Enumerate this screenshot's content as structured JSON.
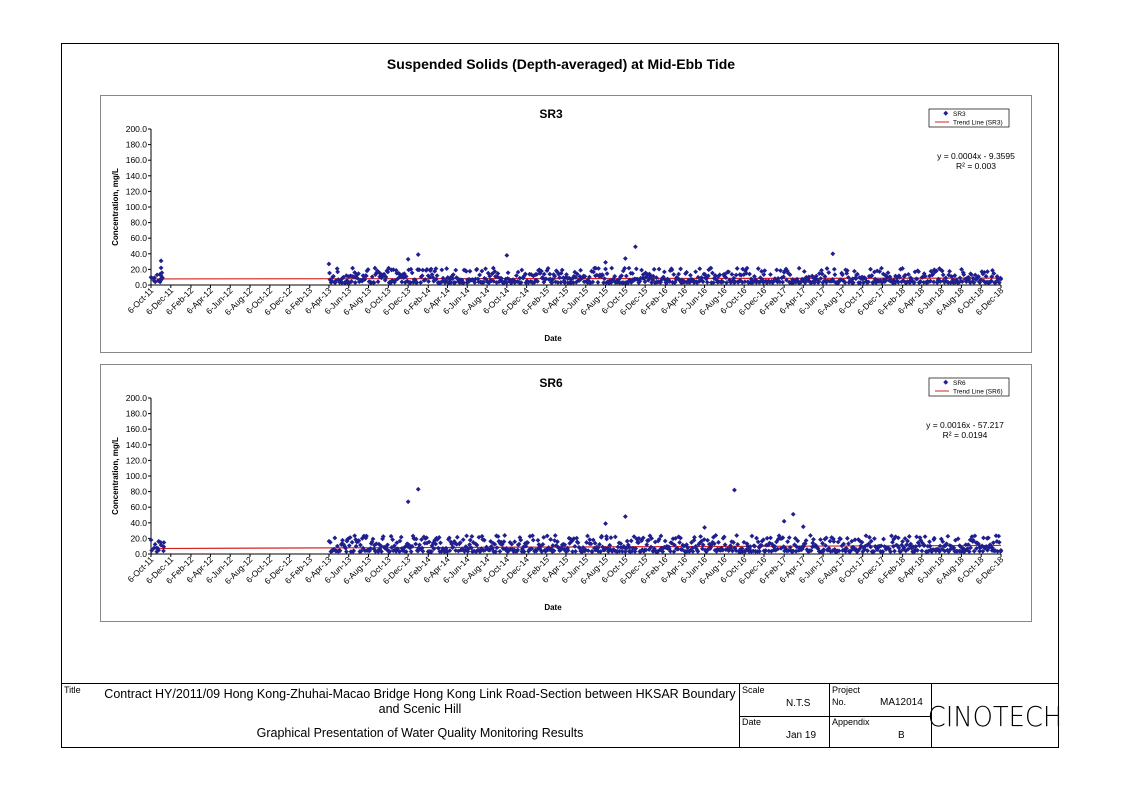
{
  "page_title": "Suspended Solids (Depth-averaged) at Mid-Ebb Tide",
  "title_block": {
    "title_label": "Title",
    "title_line1": "Contract HY/2011/09 Hong Kong-Zhuhai-Macao Bridge Hong Kong Link Road-Section between HKSAR Boundary",
    "title_line2": "and Scenic Hill",
    "subtitle": "Graphical Presentation of Water Quality Monitoring Results",
    "scale_label": "Scale",
    "scale_value": "N.T.S",
    "project_label": "Project",
    "project_no_label": "No.",
    "project_no_value": "MA12014",
    "date_label": "Date",
    "date_value": "Jan 19",
    "appendix_label": "Appendix",
    "appendix_value": "B",
    "logo_text": "CINOTECH"
  },
  "chart_data": [
    {
      "type": "scatter",
      "title": "SR3",
      "xlabel": "Date",
      "ylabel": "Concentration, mg/L",
      "ylim": [
        0,
        200
      ],
      "yticks": [
        "200.0",
        "180.0",
        "160.0",
        "140.0",
        "120.0",
        "100.0",
        "80.0",
        "60.0",
        "40.0",
        "20.0",
        "0.0"
      ],
      "xticks": [
        "6-Oct-11",
        "6-Dec-11",
        "6-Feb-12",
        "6-Apr-12",
        "6-Jun-12",
        "6-Aug-12",
        "6-Oct-12",
        "6-Dec-12",
        "6-Feb-13",
        "6-Apr-13",
        "6-Jun-13",
        "6-Aug-13",
        "6-Oct-13",
        "6-Dec-13",
        "6-Feb-14",
        "6-Apr-14",
        "6-Jun-14",
        "6-Aug-14",
        "6-Oct-14",
        "6-Dec-14",
        "6-Feb-15",
        "6-Apr-15",
        "6-Jun-15",
        "6-Aug-15",
        "6-Oct-15",
        "6-Dec-15",
        "6-Feb-16",
        "6-Apr-16",
        "6-Jun-16",
        "6-Aug-16",
        "6-Oct-16",
        "6-Dec-16",
        "6-Feb-17",
        "6-Apr-17",
        "6-Jun-17",
        "6-Aug-17",
        "6-Oct-17",
        "6-Dec-17",
        "6-Feb-18",
        "6-Apr-18",
        "6-Jun-18",
        "6-Aug-18",
        "6-Oct-18",
        "6-Dec-18"
      ],
      "legend": [
        "SR3",
        "Trend Line (SR3)"
      ],
      "legend_position": "top-right",
      "equation": "y = 0.0004x - 9.3595",
      "r_squared": "R² = 0.003",
      "trend_line": {
        "start": [
          "6-Oct-11",
          7.8
        ],
        "end": [
          "6-Dec-18",
          8.8
        ]
      },
      "series": [
        {
          "name": "SR3",
          "color": "#1f1f8f",
          "typical_range": [
            3,
            20
          ],
          "notable_points": [
            [
              "6-Oct-11",
              10
            ],
            [
              "6-Nov-11",
              31
            ],
            [
              "6-Nov-11",
              22
            ],
            [
              "6-Apr-13",
              27
            ],
            [
              "6-Dec-13",
              33
            ],
            [
              "6-Jan-14",
              39
            ],
            [
              "6-Oct-14",
              38
            ],
            [
              "6-Nov-15",
              49
            ],
            [
              "6-Oct-15",
              34
            ],
            [
              "6-Aug-15",
              29
            ],
            [
              "6-Jul-17",
              40
            ]
          ]
        }
      ],
      "trend_color": "#d42020",
      "grid": false
    },
    {
      "type": "scatter",
      "title": "SR6",
      "xlabel": "Date",
      "ylabel": "Concentration, mg/L",
      "ylim": [
        0,
        200
      ],
      "yticks": [
        "200.0",
        "180.0",
        "160.0",
        "140.0",
        "120.0",
        "100.0",
        "80.0",
        "60.0",
        "40.0",
        "20.0",
        "0.0"
      ],
      "xticks": [
        "6-Oct-11",
        "6-Dec-11",
        "6-Feb-12",
        "6-Apr-12",
        "6-Jun-12",
        "6-Aug-12",
        "6-Oct-12",
        "6-Dec-12",
        "6-Feb-13",
        "6-Apr-13",
        "6-Jun-13",
        "6-Aug-13",
        "6-Oct-13",
        "6-Dec-13",
        "6-Feb-14",
        "6-Apr-14",
        "6-Jun-14",
        "6-Aug-14",
        "6-Oct-14",
        "6-Dec-14",
        "6-Feb-15",
        "6-Apr-15",
        "6-Jun-15",
        "6-Aug-15",
        "6-Oct-15",
        "6-Dec-15",
        "6-Feb-16",
        "6-Apr-16",
        "6-Jun-16",
        "6-Aug-16",
        "6-Oct-16",
        "6-Dec-16",
        "6-Feb-17",
        "6-Apr-17",
        "6-Jun-17",
        "6-Aug-17",
        "6-Oct-17",
        "6-Dec-17",
        "6-Feb-18",
        "6-Apr-18",
        "6-Jun-18",
        "6-Aug-18",
        "6-Oct-18",
        "6-Dec-18"
      ],
      "legend": [
        "SR6",
        "Trend Line (SR6)"
      ],
      "legend_position": "top-right",
      "equation": "y = 0.0016x - 57.217",
      "r_squared": "R² = 0.0194",
      "trend_line": {
        "start": [
          "6-Oct-11",
          7.0
        ],
        "end": [
          "6-Dec-18",
          11.0
        ]
      },
      "series": [
        {
          "name": "SR6",
          "color": "#1f1f8f",
          "typical_range": [
            3,
            22
          ],
          "notable_points": [
            [
              "6-Oct-11",
              18
            ],
            [
              "6-Dec-13",
              67
            ],
            [
              "6-Jan-14",
              83
            ],
            [
              "6-Aug-15",
              39
            ],
            [
              "6-Oct-15",
              48
            ],
            [
              "6-Jun-16",
              34
            ],
            [
              "6-Sep-16",
              82
            ],
            [
              "6-Mar-17",
              51
            ],
            [
              "6-Feb-17",
              42
            ],
            [
              "6-Apr-17",
              35
            ]
          ]
        }
      ],
      "trend_color": "#d42020",
      "grid": false
    }
  ]
}
